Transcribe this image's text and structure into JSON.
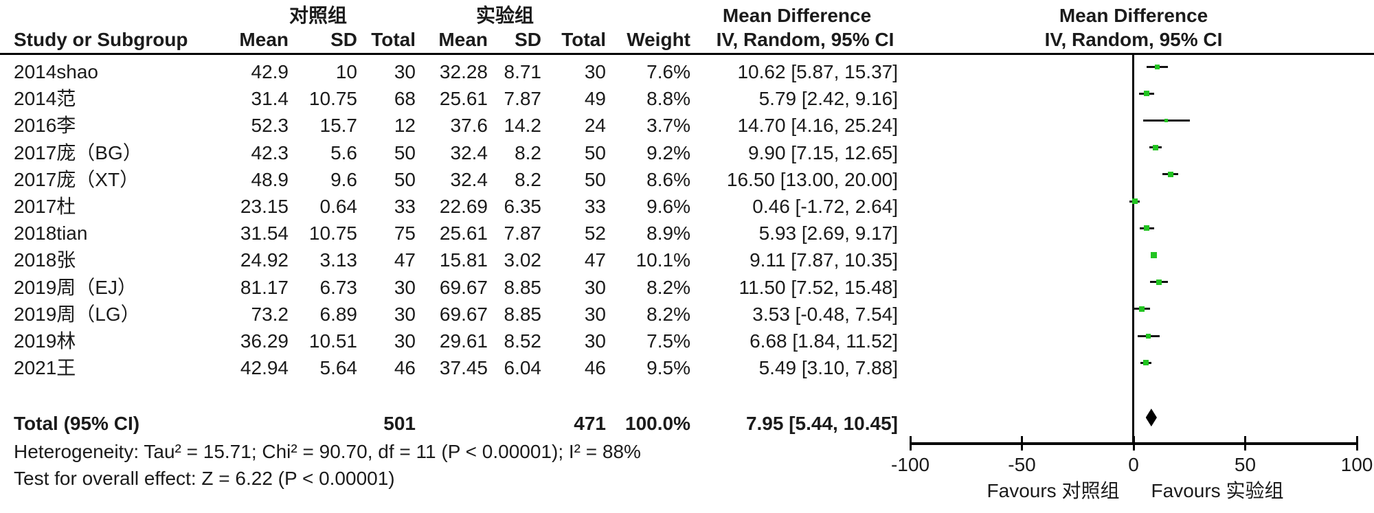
{
  "header": {
    "group_control": "对照组",
    "group_experimental": "实验组",
    "study_col": "Study or Subgroup",
    "mean_col": "Mean",
    "sd_col": "SD",
    "total_col": "Total",
    "weight_col": "Weight",
    "md_title": "Mean Difference",
    "md_subtitle": "IV, Random, 95% CI"
  },
  "footer": {
    "heterogeneity": "Heterogeneity: Tau² = 15.71; Chi² = 90.70, df = 11 (P < 0.00001); I² = 88%",
    "overall_effect": "Test for overall effect: Z = 6.22 (P < 0.00001)"
  },
  "chart_data": {
    "type": "forest",
    "effect_measure": "Mean Difference, IV, Random, 95% CI",
    "marker_color": "#22c421",
    "line_color": "#111111",
    "axis": {
      "xlim": [
        -100,
        100
      ],
      "ticks": [
        "-100",
        "-50",
        "0",
        "50",
        "100"
      ],
      "tick_values": [
        -100,
        -50,
        0,
        50,
        100
      ]
    },
    "favours_left": "Favours 对照组",
    "favours_right": "Favours 实验组",
    "studies": [
      {
        "label": "2014shao",
        "c_mean": "42.9",
        "c_sd": "10",
        "c_total": "30",
        "e_mean": "32.28",
        "e_sd": "8.71",
        "e_total": "30",
        "weight": "7.6%",
        "weight_val": 7.6,
        "md": 10.62,
        "lo": 5.87,
        "hi": 15.37,
        "ci_text": "10.62 [5.87, 15.37]"
      },
      {
        "label": "2014范",
        "c_mean": "31.4",
        "c_sd": "10.75",
        "c_total": "68",
        "e_mean": "25.61",
        "e_sd": "7.87",
        "e_total": "49",
        "weight": "8.8%",
        "weight_val": 8.8,
        "md": 5.79,
        "lo": 2.42,
        "hi": 9.16,
        "ci_text": "5.79 [2.42, 9.16]"
      },
      {
        "label": "2016李",
        "c_mean": "52.3",
        "c_sd": "15.7",
        "c_total": "12",
        "e_mean": "37.6",
        "e_sd": "14.2",
        "e_total": "24",
        "weight": "3.7%",
        "weight_val": 3.7,
        "md": 14.7,
        "lo": 4.16,
        "hi": 25.24,
        "ci_text": "14.70 [4.16, 25.24]"
      },
      {
        "label": "2017庞（BG）",
        "c_mean": "42.3",
        "c_sd": "5.6",
        "c_total": "50",
        "e_mean": "32.4",
        "e_sd": "8.2",
        "e_total": "50",
        "weight": "9.2%",
        "weight_val": 9.2,
        "md": 9.9,
        "lo": 7.15,
        "hi": 12.65,
        "ci_text": "9.90 [7.15, 12.65]"
      },
      {
        "label": "2017庞（XT）",
        "c_mean": "48.9",
        "c_sd": "9.6",
        "c_total": "50",
        "e_mean": "32.4",
        "e_sd": "8.2",
        "e_total": "50",
        "weight": "8.6%",
        "weight_val": 8.6,
        "md": 16.5,
        "lo": 13.0,
        "hi": 20.0,
        "ci_text": "16.50 [13.00, 20.00]"
      },
      {
        "label": "2017杜",
        "c_mean": "23.15",
        "c_sd": "0.64",
        "c_total": "33",
        "e_mean": "22.69",
        "e_sd": "6.35",
        "e_total": "33",
        "weight": "9.6%",
        "weight_val": 9.6,
        "md": 0.46,
        "lo": -1.72,
        "hi": 2.64,
        "ci_text": "0.46 [-1.72, 2.64]"
      },
      {
        "label": "2018tian",
        "c_mean": "31.54",
        "c_sd": "10.75",
        "c_total": "75",
        "e_mean": "25.61",
        "e_sd": "7.87",
        "e_total": "52",
        "weight": "8.9%",
        "weight_val": 8.9,
        "md": 5.93,
        "lo": 2.69,
        "hi": 9.17,
        "ci_text": "5.93 [2.69, 9.17]"
      },
      {
        "label": "2018张",
        "c_mean": "24.92",
        "c_sd": "3.13",
        "c_total": "47",
        "e_mean": "15.81",
        "e_sd": "3.02",
        "e_total": "47",
        "weight": "10.1%",
        "weight_val": 10.1,
        "md": 9.11,
        "lo": 7.87,
        "hi": 10.35,
        "ci_text": "9.11 [7.87, 10.35]"
      },
      {
        "label": "2019周（EJ）",
        "c_mean": "81.17",
        "c_sd": "6.73",
        "c_total": "30",
        "e_mean": "69.67",
        "e_sd": "8.85",
        "e_total": "30",
        "weight": "8.2%",
        "weight_val": 8.2,
        "md": 11.5,
        "lo": 7.52,
        "hi": 15.48,
        "ci_text": "11.50 [7.52, 15.48]"
      },
      {
        "label": "2019周（LG）",
        "c_mean": "73.2",
        "c_sd": "6.89",
        "c_total": "30",
        "e_mean": "69.67",
        "e_sd": "8.85",
        "e_total": "30",
        "weight": "8.2%",
        "weight_val": 8.2,
        "md": 3.53,
        "lo": -0.48,
        "hi": 7.54,
        "ci_text": "3.53 [-0.48, 7.54]"
      },
      {
        "label": "2019林",
        "c_mean": "36.29",
        "c_sd": "10.51",
        "c_total": "30",
        "e_mean": "29.61",
        "e_sd": "8.52",
        "e_total": "30",
        "weight": "7.5%",
        "weight_val": 7.5,
        "md": 6.68,
        "lo": 1.84,
        "hi": 11.52,
        "ci_text": "6.68 [1.84, 11.52]"
      },
      {
        "label": "2021王",
        "c_mean": "42.94",
        "c_sd": "5.64",
        "c_total": "46",
        "e_mean": "37.45",
        "e_sd": "6.04",
        "e_total": "46",
        "weight": "9.5%",
        "weight_val": 9.5,
        "md": 5.49,
        "lo": 3.1,
        "hi": 7.88,
        "ci_text": "5.49 [3.10, 7.88]"
      }
    ],
    "total": {
      "label": "Total (95% CI)",
      "c_total": "501",
      "e_total": "471",
      "weight": "100.0%",
      "md": 7.95,
      "lo": 5.44,
      "hi": 10.45,
      "ci_text": "7.95 [5.44, 10.45]"
    }
  }
}
